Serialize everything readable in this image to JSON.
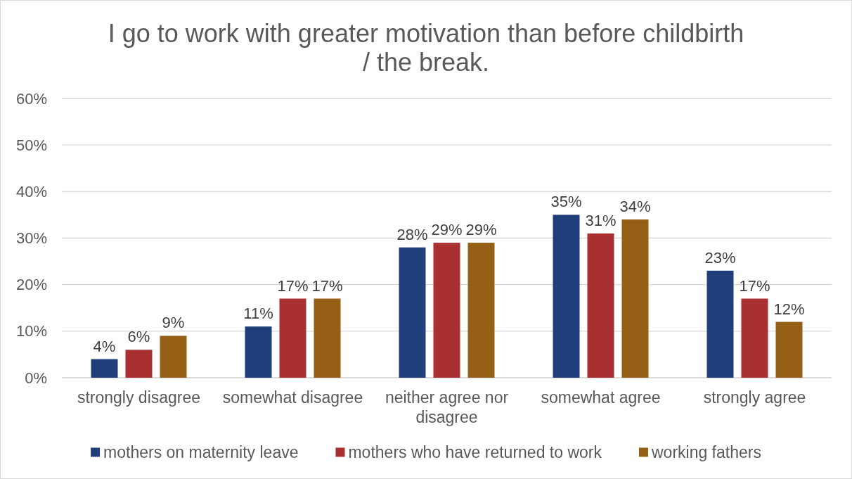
{
  "chart_data": {
    "type": "bar",
    "title": "I go to work with greater motivation than before childbirth / the break.",
    "categories": [
      "strongly disagree",
      "somewhat disagree",
      "neither agree nor disagree",
      "somewhat agree",
      "strongly agree"
    ],
    "series": [
      {
        "name": "mothers on maternity leave",
        "color": "#203f7a",
        "values": [
          4,
          11,
          28,
          35,
          23
        ],
        "value_labels": [
          "4%",
          "11%",
          "28%",
          "35%",
          "23%"
        ]
      },
      {
        "name": "mothers who have returned to work",
        "color": "#a83030",
        "values": [
          6,
          17,
          29,
          31,
          17
        ],
        "value_labels": [
          "6%",
          "17%",
          "29%",
          "31%",
          "17%"
        ]
      },
      {
        "name": "working fathers",
        "color": "#956015",
        "values": [
          9,
          17,
          29,
          34,
          12
        ],
        "value_labels": [
          "9%",
          "17%",
          "29%",
          "34%",
          "12%"
        ]
      }
    ],
    "ylim": [
      0,
      60
    ],
    "yticks": [
      {
        "value": 0,
        "label": "0%"
      },
      {
        "value": 10,
        "label": "10%"
      },
      {
        "value": 20,
        "label": "20%"
      },
      {
        "value": 30,
        "label": "30%"
      },
      {
        "value": 40,
        "label": "40%"
      },
      {
        "value": 50,
        "label": "50%"
      },
      {
        "value": 60,
        "label": "60%"
      }
    ],
    "grid": "y",
    "legend": "bottom"
  }
}
